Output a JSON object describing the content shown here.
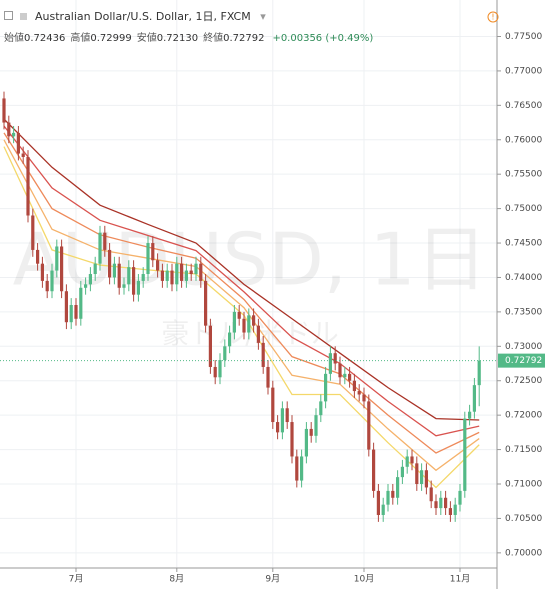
{
  "chart_data": {
    "type": "candlestick",
    "legend": {
      "symbol": "Australian Dollar/U.S. Dollar, 1日, FXCM",
      "ohlc": [
        {
          "label": "始値",
          "value": "0.72436"
        },
        {
          "label": "高値",
          "value": "0.72999"
        },
        {
          "label": "安値",
          "value": "0.72130"
        },
        {
          "label": "終値",
          "value": "0.72792"
        }
      ],
      "change": "+0.00356 (+0.49%)"
    },
    "watermark": "AUDUSD, 1日",
    "watermark_subtitle": "豪ドル/米ドル",
    "categories": [
      null,
      null,
      null,
      null,
      null,
      null,
      null,
      null,
      null,
      null,
      null,
      null,
      null,
      null,
      null,
      "7月",
      null,
      null,
      null,
      null,
      null,
      null,
      null,
      null,
      null,
      null,
      null,
      null,
      null,
      null,
      null,
      null,
      null,
      null,
      null,
      null,
      "8月",
      null,
      null,
      null,
      null,
      null,
      null,
      null,
      null,
      null,
      null,
      null,
      null,
      null,
      null,
      null,
      null,
      null,
      null,
      null,
      "9月",
      null,
      null,
      null,
      null,
      null,
      null,
      null,
      null,
      null,
      null,
      null,
      null,
      null,
      null,
      null,
      null,
      null,
      null,
      "10月",
      null,
      null,
      null,
      null,
      null,
      null,
      null,
      null,
      null,
      null,
      null,
      null,
      null,
      null,
      null,
      null,
      null,
      null,
      null,
      "11月",
      null,
      null,
      null,
      null
    ],
    "open": [
      0.766,
      0.7625,
      0.7605,
      0.761,
      0.758,
      0.7575,
      0.749,
      0.744,
      0.742,
      0.7395,
      0.738,
      0.741,
      0.7445,
      0.738,
      0.7335,
      0.736,
      0.734,
      0.7385,
      0.739,
      0.7405,
      0.742,
      0.7465,
      0.744,
      0.74,
      0.742,
      0.7385,
      0.739,
      0.7415,
      0.7375,
      0.7395,
      0.7405,
      0.745,
      0.7425,
      0.741,
      0.7395,
      0.741,
      0.739,
      0.742,
      0.7395,
      0.741,
      0.7405,
      0.742,
      0.7395,
      0.733,
      0.727,
      0.7255,
      0.728,
      0.73,
      0.732,
      0.735,
      0.734,
      0.732,
      0.7345,
      0.733,
      0.7305,
      0.727,
      0.724,
      0.719,
      0.7175,
      0.721,
      0.719,
      0.714,
      0.7105,
      0.714,
      0.718,
      0.717,
      0.72,
      0.722,
      0.726,
      0.729,
      0.7275,
      0.7255,
      0.726,
      0.725,
      0.7235,
      0.723,
      0.722,
      0.715,
      0.709,
      0.7055,
      0.707,
      0.709,
      0.708,
      0.711,
      0.7125,
      0.714,
      0.713,
      0.71,
      0.712,
      0.7095,
      0.7075,
      0.7065,
      0.708,
      0.7065,
      0.7055,
      0.707,
      0.709,
      0.7195,
      0.7205,
      0.72436
    ],
    "high": [
      0.767,
      0.7635,
      0.762,
      0.762,
      0.759,
      0.7585,
      0.75,
      0.745,
      0.743,
      0.7405,
      0.742,
      0.7455,
      0.7455,
      0.739,
      0.737,
      0.737,
      0.7395,
      0.74,
      0.7415,
      0.743,
      0.7475,
      0.7475,
      0.745,
      0.743,
      0.743,
      0.74,
      0.7425,
      0.7425,
      0.7405,
      0.7415,
      0.746,
      0.746,
      0.7435,
      0.742,
      0.742,
      0.742,
      0.743,
      0.743,
      0.742,
      0.742,
      0.743,
      0.743,
      0.7405,
      0.734,
      0.728,
      0.729,
      0.731,
      0.733,
      0.736,
      0.736,
      0.735,
      0.7355,
      0.7355,
      0.734,
      0.7315,
      0.728,
      0.725,
      0.72,
      0.722,
      0.722,
      0.72,
      0.715,
      0.715,
      0.719,
      0.719,
      0.721,
      0.723,
      0.727,
      0.73,
      0.73,
      0.7285,
      0.727,
      0.727,
      0.726,
      0.7245,
      0.724,
      0.723,
      0.716,
      0.71,
      0.708,
      0.71,
      0.71,
      0.712,
      0.7135,
      0.715,
      0.715,
      0.714,
      0.713,
      0.713,
      0.7105,
      0.7085,
      0.709,
      0.709,
      0.7075,
      0.708,
      0.71,
      0.7205,
      0.7215,
      0.7254,
      0.72999
    ],
    "low": [
      0.7615,
      0.7595,
      0.7595,
      0.757,
      0.7565,
      0.748,
      0.743,
      0.741,
      0.7385,
      0.737,
      0.737,
      0.74,
      0.737,
      0.7325,
      0.7325,
      0.733,
      0.733,
      0.7375,
      0.738,
      0.7395,
      0.741,
      0.743,
      0.739,
      0.739,
      0.7375,
      0.7375,
      0.738,
      0.7365,
      0.7365,
      0.7385,
      0.7395,
      0.7415,
      0.74,
      0.7385,
      0.7385,
      0.738,
      0.738,
      0.7385,
      0.7385,
      0.7395,
      0.7395,
      0.7385,
      0.732,
      0.726,
      0.7245,
      0.7245,
      0.727,
      0.729,
      0.731,
      0.733,
      0.731,
      0.731,
      0.732,
      0.7295,
      0.726,
      0.723,
      0.718,
      0.7165,
      0.7165,
      0.718,
      0.713,
      0.7095,
      0.7095,
      0.713,
      0.716,
      0.716,
      0.719,
      0.721,
      0.725,
      0.7265,
      0.7245,
      0.7245,
      0.724,
      0.7225,
      0.722,
      0.721,
      0.714,
      0.708,
      0.7045,
      0.7045,
      0.706,
      0.707,
      0.707,
      0.71,
      0.7115,
      0.712,
      0.709,
      0.709,
      0.7085,
      0.7065,
      0.7055,
      0.7055,
      0.7055,
      0.7045,
      0.7045,
      0.706,
      0.708,
      0.7185,
      0.7195,
      0.7213
    ],
    "close": [
      0.7625,
      0.7605,
      0.761,
      0.758,
      0.7575,
      0.749,
      0.744,
      0.742,
      0.7395,
      0.738,
      0.741,
      0.7445,
      0.738,
      0.7335,
      0.736,
      0.734,
      0.7385,
      0.739,
      0.7405,
      0.742,
      0.7465,
      0.744,
      0.74,
      0.742,
      0.7385,
      0.739,
      0.7415,
      0.7375,
      0.7395,
      0.7405,
      0.745,
      0.7425,
      0.741,
      0.7395,
      0.741,
      0.739,
      0.742,
      0.7395,
      0.741,
      0.7405,
      0.742,
      0.7395,
      0.733,
      0.727,
      0.7255,
      0.728,
      0.73,
      0.732,
      0.735,
      0.734,
      0.732,
      0.7345,
      0.733,
      0.7305,
      0.727,
      0.724,
      0.719,
      0.7175,
      0.721,
      0.719,
      0.714,
      0.7105,
      0.714,
      0.718,
      0.717,
      0.72,
      0.722,
      0.726,
      0.729,
      0.7275,
      0.7255,
      0.726,
      0.725,
      0.7235,
      0.723,
      0.722,
      0.715,
      0.709,
      0.7055,
      0.707,
      0.709,
      0.708,
      0.711,
      0.7125,
      0.714,
      0.713,
      0.71,
      0.712,
      0.7095,
      0.7075,
      0.7065,
      0.708,
      0.7065,
      0.7055,
      0.707,
      0.709,
      0.7195,
      0.7205,
      0.72436,
      0.72792
    ],
    "up_color": "#53b987",
    "down_color": "#b0473e",
    "ribbon_x": [
      0,
      10,
      20,
      30,
      40,
      50,
      60,
      70,
      80,
      90,
      99
    ],
    "ribbons": [
      {
        "color": "#a93226",
        "values": [
          0.763,
          0.756,
          0.7505,
          0.7477,
          0.745,
          0.739,
          0.734,
          0.729,
          0.724,
          0.7195,
          0.7193
        ]
      },
      {
        "color": "#d9534f",
        "values": [
          0.762,
          0.753,
          0.7483,
          0.7461,
          0.7439,
          0.7379,
          0.7313,
          0.7275,
          0.722,
          0.717,
          0.7184
        ]
      },
      {
        "color": "#ee8a5a",
        "values": [
          0.761,
          0.75,
          0.7462,
          0.7444,
          0.7428,
          0.7368,
          0.7285,
          0.726,
          0.72,
          0.7145,
          0.7175
        ]
      },
      {
        "color": "#f5b26b",
        "values": [
          0.76,
          0.747,
          0.744,
          0.7428,
          0.7416,
          0.7356,
          0.7258,
          0.7245,
          0.718,
          0.712,
          0.7166
        ]
      },
      {
        "color": "#f4d86a",
        "values": [
          0.759,
          0.744,
          0.7418,
          0.7411,
          0.7405,
          0.7345,
          0.723,
          0.723,
          0.716,
          0.7095,
          0.7157
        ]
      }
    ],
    "last_price": {
      "value": 0.72792,
      "label": "0.72792"
    },
    "ylim": [
      0.6978,
      0.7803
    ],
    "yticks": [
      {
        "value": 0.7,
        "label": "0.70000"
      },
      {
        "value": 0.705,
        "label": "0.70500"
      },
      {
        "value": 0.71,
        "label": "0.71000"
      },
      {
        "value": 0.715,
        "label": "0.71500"
      },
      {
        "value": 0.72,
        "label": "0.72000"
      },
      {
        "value": 0.725,
        "label": "0.72500"
      },
      {
        "value": 0.73,
        "label": "0.73000"
      },
      {
        "value": 0.735,
        "label": "0.73500"
      },
      {
        "value": 0.74,
        "label": "0.74000"
      },
      {
        "value": 0.745,
        "label": "0.74500"
      },
      {
        "value": 0.75,
        "label": "0.75000"
      },
      {
        "value": 0.755,
        "label": "0.75500"
      },
      {
        "value": 0.76,
        "label": "0.76000"
      },
      {
        "value": 0.765,
        "label": "0.76500"
      },
      {
        "value": 0.77,
        "label": "0.77000"
      },
      {
        "value": 0.775,
        "label": "0.77500"
      }
    ],
    "grid": true
  }
}
